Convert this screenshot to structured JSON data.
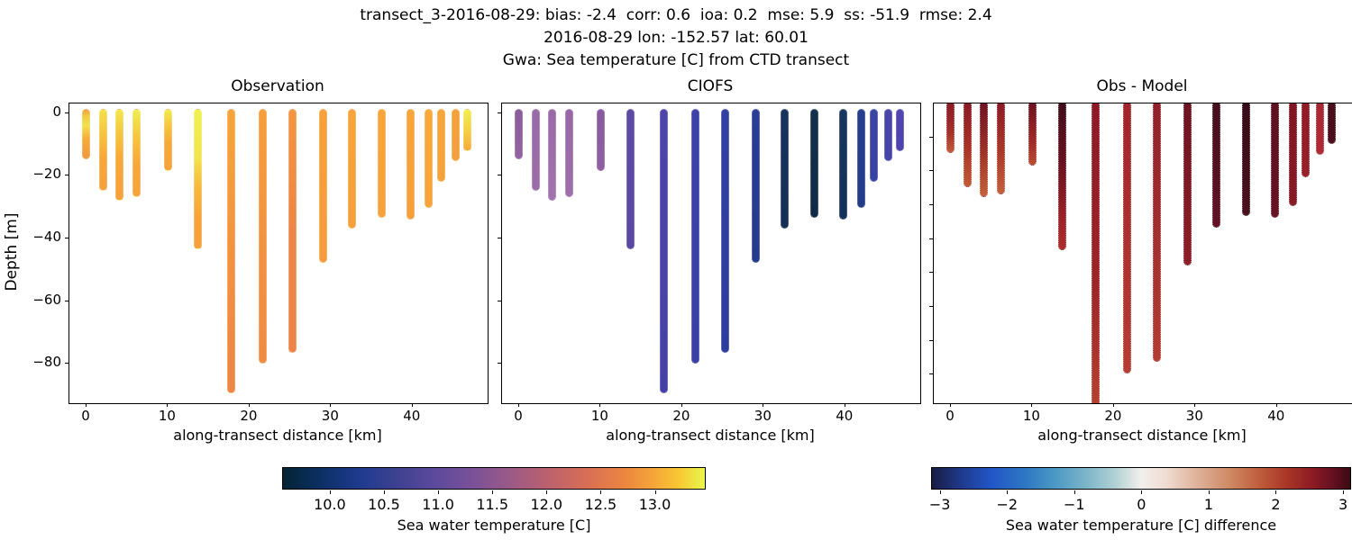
{
  "header": {
    "line1": "transect_3-2016-08-29: bias: -2.4  corr: 0.6  ioa: 0.2  mse: 5.9  ss: -51.9  rmse: 2.4",
    "line2": "2016-08-29 lon: -152.57 lat: 60.01",
    "line3": "Gwa: Sea temperature [C] from CTD transect"
  },
  "chart_data": {
    "type": "scatter",
    "description": "Three-panel CTD transect depth profiles: observed sea water temperature, CIOFS model temperature, and their difference. Each station is a vertical colored profile column.",
    "xlabel": "along-transect distance [km]",
    "ylabel": "Depth [m]",
    "xlim": [
      -2.1,
      49.2
    ],
    "xticks": [
      0,
      10,
      20,
      30,
      40
    ],
    "panels": [
      {
        "title": "Observation",
        "colorkey": "obs",
        "ylim": [
          -92.5,
          3.1
        ],
        "yticks": [
          0,
          -20,
          -40,
          -60,
          -80
        ],
        "ytick_labels_visible": true
      },
      {
        "title": "CIOFS",
        "colorkey": "model",
        "ylim": [
          -92.5,
          3.1
        ],
        "yticks": [
          0,
          -20,
          -40,
          -60,
          -80
        ],
        "ytick_labels_visible": false
      },
      {
        "title": "Obs - Model",
        "colorkey": "diff",
        "ylim": [
          -88.4,
          0
        ],
        "yticks": [
          -10,
          -20,
          -30,
          -40,
          -50,
          -60,
          -70,
          -80
        ],
        "ytick_labels_visible": false
      }
    ],
    "stations": [
      {
        "km": 0,
        "depth": 13.3,
        "obs": [
          [
            0,
            "#f0a13c"
          ],
          [
            15,
            "#f0ce45"
          ],
          [
            32,
            "#f2e14c"
          ],
          [
            60,
            "#f5ab3a"
          ],
          [
            100,
            "#ef993f"
          ]
        ],
        "model": [
          [
            0,
            "#8a5c9c"
          ],
          [
            100,
            "#92639f"
          ]
        ],
        "diff": [
          [
            0,
            "#8c1b26"
          ],
          [
            60,
            "#a33029"
          ],
          [
            100,
            "#bf5a3a"
          ]
        ]
      },
      {
        "km": 2,
        "depth": 23.5,
        "obs": [
          [
            0,
            "#f5df49"
          ],
          [
            30,
            "#f6c33f"
          ],
          [
            60,
            "#f7a73a"
          ],
          [
            100,
            "#f5a03c"
          ]
        ],
        "model": [
          [
            0,
            "#9a69a7"
          ],
          [
            100,
            "#9c6ca9"
          ]
        ],
        "diff": [
          [
            0,
            "#8a1a25"
          ],
          [
            55,
            "#a83427"
          ],
          [
            100,
            "#c25a36"
          ]
        ]
      },
      {
        "km": 4,
        "depth": 26.5,
        "obs": [
          [
            0,
            "#f2e84d"
          ],
          [
            25,
            "#f5c741"
          ],
          [
            55,
            "#f7a93a"
          ],
          [
            100,
            "#f5a13c"
          ]
        ],
        "model": [
          [
            0,
            "#9a69a7"
          ],
          [
            100,
            "#a273ae"
          ]
        ],
        "diff": [
          [
            0,
            "#701424"
          ],
          [
            55,
            "#a23326"
          ],
          [
            100,
            "#c4603a"
          ]
        ]
      },
      {
        "km": 6.1,
        "depth": 25.5,
        "obs": [
          [
            0,
            "#f0ee50"
          ],
          [
            30,
            "#f5c741"
          ],
          [
            62,
            "#f7a83a"
          ],
          [
            100,
            "#f5a23c"
          ]
        ],
        "model": [
          [
            0,
            "#9967a6"
          ],
          [
            100,
            "#9e6fab"
          ]
        ],
        "diff": [
          [
            0,
            "#8c1a26"
          ],
          [
            55,
            "#ab3928"
          ],
          [
            100,
            "#c2603c"
          ]
        ]
      },
      {
        "km": 10,
        "depth": 17,
        "obs": [
          [
            0,
            "#f3ea4e"
          ],
          [
            28,
            "#f6c440"
          ],
          [
            55,
            "#f7a83a"
          ],
          [
            100,
            "#f5a33c"
          ]
        ],
        "model": [
          [
            0,
            "#8a5a9e"
          ],
          [
            100,
            "#8f5fa2"
          ]
        ],
        "diff": [
          [
            0,
            "#6f1323"
          ],
          [
            60,
            "#9c2b27"
          ],
          [
            100,
            "#b94c31"
          ]
        ]
      },
      {
        "km": 13.7,
        "depth": 42,
        "obs": [
          [
            0,
            "#eef24f"
          ],
          [
            35,
            "#f2e44c"
          ],
          [
            55,
            "#f6b93d"
          ],
          [
            78,
            "#f7a43a"
          ],
          [
            100,
            "#f5a03c"
          ]
        ],
        "model": [
          [
            0,
            "#5d4aa5"
          ],
          [
            100,
            "#5a47a2"
          ]
        ],
        "diff": [
          [
            0,
            "#420d1b"
          ],
          [
            45,
            "#6d1322"
          ],
          [
            80,
            "#9c2429"
          ],
          [
            100,
            "#ad2c2c"
          ]
        ]
      },
      {
        "km": 17.7,
        "depth": 88,
        "obs": [
          [
            0,
            "#f7a43a"
          ],
          [
            50,
            "#f3923f"
          ],
          [
            100,
            "#ee8545"
          ]
        ],
        "model": [
          [
            0,
            "#4c44ac"
          ],
          [
            100,
            "#4540a8"
          ]
        ],
        "diff": [
          [
            0,
            "#8c1a26"
          ],
          [
            60,
            "#9c2528"
          ],
          [
            100,
            "#b4402f"
          ]
        ]
      },
      {
        "km": 21.6,
        "depth": 78.5,
        "obs": [
          [
            0,
            "#f69e3b"
          ],
          [
            60,
            "#f29140"
          ],
          [
            100,
            "#f08c42"
          ]
        ],
        "model": [
          [
            0,
            "#3e41a8"
          ],
          [
            100,
            "#3a3fa5"
          ]
        ],
        "diff": [
          [
            0,
            "#a1252c"
          ],
          [
            100,
            "#b53d33"
          ]
        ]
      },
      {
        "km": 25.3,
        "depth": 75,
        "obs": [
          [
            0,
            "#f49540"
          ],
          [
            50,
            "#ee8546"
          ],
          [
            100,
            "#ed8347"
          ]
        ],
        "model": [
          [
            0,
            "#3340a2"
          ],
          [
            100,
            "#2e3d9d"
          ]
        ],
        "diff": [
          [
            0,
            "#92202a"
          ],
          [
            100,
            "#b23c31"
          ]
        ]
      },
      {
        "km": 29,
        "depth": 46.5,
        "obs": [
          [
            0,
            "#f7a139"
          ],
          [
            100,
            "#f59c3c"
          ]
        ],
        "model": [
          [
            0,
            "#2a3c96"
          ],
          [
            100,
            "#253a8e"
          ]
        ],
        "diff": [
          [
            0,
            "#6d1322"
          ],
          [
            100,
            "#8e2027"
          ]
        ]
      },
      {
        "km": 32.6,
        "depth": 35.5,
        "obs": [
          [
            0,
            "#f7a43a"
          ],
          [
            100,
            "#f6a03b"
          ]
        ],
        "model": [
          [
            0,
            "#17335c"
          ],
          [
            100,
            "#152f55"
          ]
        ],
        "diff": [
          [
            0,
            "#46101e"
          ],
          [
            100,
            "#611224"
          ]
        ]
      },
      {
        "km": 36.2,
        "depth": 32,
        "obs": [
          [
            0,
            "#f7a53a"
          ],
          [
            100,
            "#f6a23b"
          ]
        ],
        "model": [
          [
            0,
            "#122f4c"
          ],
          [
            100,
            "#102b46"
          ]
        ],
        "diff": [
          [
            0,
            "#360b17"
          ],
          [
            100,
            "#49101d"
          ]
        ]
      },
      {
        "km": 39.8,
        "depth": 32.5,
        "obs": [
          [
            0,
            "#f7a43a"
          ],
          [
            100,
            "#f5a03c"
          ]
        ],
        "model": [
          [
            0,
            "#16355f"
          ],
          [
            100,
            "#143159"
          ]
        ],
        "diff": [
          [
            0,
            "#5e1121"
          ],
          [
            100,
            "#661323"
          ]
        ]
      },
      {
        "km": 42,
        "depth": 29,
        "obs": [
          [
            0,
            "#f7a93b"
          ],
          [
            100,
            "#f6a43b"
          ]
        ],
        "model": [
          [
            0,
            "#273e8f"
          ],
          [
            100,
            "#243b89"
          ]
        ],
        "diff": [
          [
            0,
            "#7e1723"
          ],
          [
            100,
            "#871b26"
          ]
        ]
      },
      {
        "km": 43.5,
        "depth": 20.5,
        "obs": [
          [
            0,
            "#f7a63a"
          ],
          [
            100,
            "#f5a23c"
          ]
        ],
        "model": [
          [
            0,
            "#3b44a5"
          ],
          [
            100,
            "#3842a2"
          ]
        ],
        "diff": [
          [
            0,
            "#8e1c26"
          ],
          [
            100,
            "#962129"
          ]
        ]
      },
      {
        "km": 45.3,
        "depth": 14,
        "obs": [
          [
            0,
            "#f6a23b"
          ],
          [
            100,
            "#f49f3d"
          ]
        ],
        "model": [
          [
            0,
            "#4845ab"
          ],
          [
            100,
            "#4643a9"
          ]
        ],
        "diff": [
          [
            0,
            "#a82834"
          ],
          [
            100,
            "#ad2b35"
          ]
        ]
      },
      {
        "km": 46.7,
        "depth": 10.8,
        "obs": [
          [
            0,
            "#f1ee4f"
          ],
          [
            50,
            "#f5d145"
          ],
          [
            100,
            "#f6ab3b"
          ]
        ],
        "model": [
          [
            0,
            "#5145b0"
          ],
          [
            100,
            "#4e43ad"
          ]
        ],
        "diff": [
          [
            0,
            "#480d1b"
          ],
          [
            100,
            "#4d0e1d"
          ]
        ]
      }
    ],
    "colorbars": [
      {
        "label": "Sea water temperature [C]",
        "range": [
          9.56,
          13.47
        ],
        "tick_values": [
          10.0,
          10.5,
          11.0,
          11.5,
          12.0,
          12.5,
          13.0
        ],
        "tick_labels": [
          "10.0",
          "10.5",
          "11.0",
          "11.5",
          "12.0",
          "12.5",
          "13.0"
        ],
        "colormap_name": "thermal",
        "gradient": [
          [
            0,
            "#032333"
          ],
          [
            9,
            "#0c3064"
          ],
          [
            18,
            "#1e3a8f"
          ],
          [
            27,
            "#3e4191"
          ],
          [
            36,
            "#5c4a9c"
          ],
          [
            45,
            "#7a5199"
          ],
          [
            54,
            "#9c5a86"
          ],
          [
            63,
            "#bc616e"
          ],
          [
            72,
            "#d86e55"
          ],
          [
            81,
            "#ec8640"
          ],
          [
            88,
            "#f6a639"
          ],
          [
            94,
            "#f8c932"
          ],
          [
            100,
            "#e9f64e"
          ]
        ]
      },
      {
        "label": "Sea water temperature [C] difference",
        "range": [
          -3.13,
          3.12
        ],
        "tick_values": [
          -3,
          -2,
          -1,
          0,
          1,
          2,
          3
        ],
        "tick_labels": [
          "−3",
          "−2",
          "−1",
          "0",
          "1",
          "2",
          "3"
        ],
        "colormap_name": "balance",
        "gradient": [
          [
            0,
            "#181c43"
          ],
          [
            7,
            "#1f3a8c"
          ],
          [
            14,
            "#2155c7"
          ],
          [
            22,
            "#2d76c3"
          ],
          [
            29,
            "#4997c4"
          ],
          [
            37,
            "#7db6c9"
          ],
          [
            44,
            "#b3d2d5"
          ],
          [
            50,
            "#f2efec"
          ],
          [
            56,
            "#f0dcd2"
          ],
          [
            63,
            "#e0b49c"
          ],
          [
            71,
            "#cf8a66"
          ],
          [
            78,
            "#c05f3d"
          ],
          [
            85,
            "#a93527"
          ],
          [
            91,
            "#8c1b24"
          ],
          [
            96,
            "#641021"
          ],
          [
            100,
            "#3a0a12"
          ]
        ]
      }
    ]
  }
}
